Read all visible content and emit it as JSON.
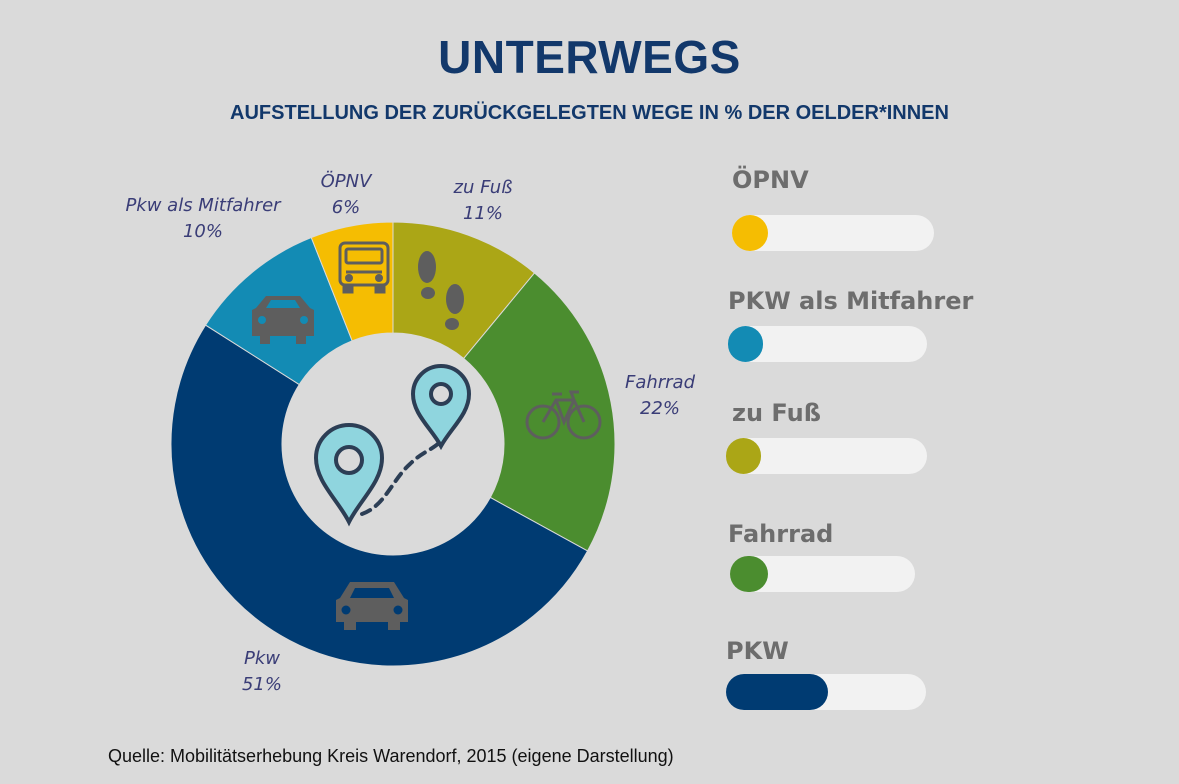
{
  "header": {
    "title": "UNTERWEGS",
    "subtitle": "AUFSTELLUNG DER ZURÜCKGELEGTEN WEGE IN % DER OELDER*INNEN"
  },
  "chart_data": [
    {
      "type": "pie",
      "title": "UNTERWEGS",
      "subtitle": "AUFSTELLUNG DER ZURÜCKGELEGTEN WEGE IN % DER OELDER*INNEN",
      "slices": [
        {
          "name": "zu Fuß",
          "value": 11,
          "label": "11%",
          "color": "#aba616",
          "icon": "footprints-icon"
        },
        {
          "name": "Fahrrad",
          "value": 22,
          "label": "22%",
          "color": "#4b8d2f",
          "icon": "bicycle-icon"
        },
        {
          "name": "Pkw",
          "value": 51,
          "label": "51%",
          "color": "#003b72",
          "icon": "car-icon"
        },
        {
          "name": "Pkw als Mitfahrer",
          "value": 10,
          "label": "10%",
          "color": "#138bb4",
          "icon": "carpool-car-icon"
        },
        {
          "name": "ÖPNV",
          "value": 6,
          "label": "6%",
          "color": "#f5bd02",
          "icon": "bus-icon"
        }
      ],
      "center_icon": "map-pins-route-icon"
    },
    {
      "type": "bar",
      "orientation": "horizontal",
      "categories": [
        "ÖPNV",
        "PKW als Mitfahrer",
        "zu Fuß",
        "Fahrrad",
        "PKW"
      ],
      "values": [
        6,
        10,
        11,
        22,
        51
      ],
      "max": 100,
      "colors": [
        "#f5bd02",
        "#138bb4",
        "#aba616",
        "#4b8d2f",
        "#003b72"
      ]
    }
  ],
  "source": "Quelle: Mobilitätserhebung Kreis Warendorf, 2015 (eigene Darstellung)"
}
